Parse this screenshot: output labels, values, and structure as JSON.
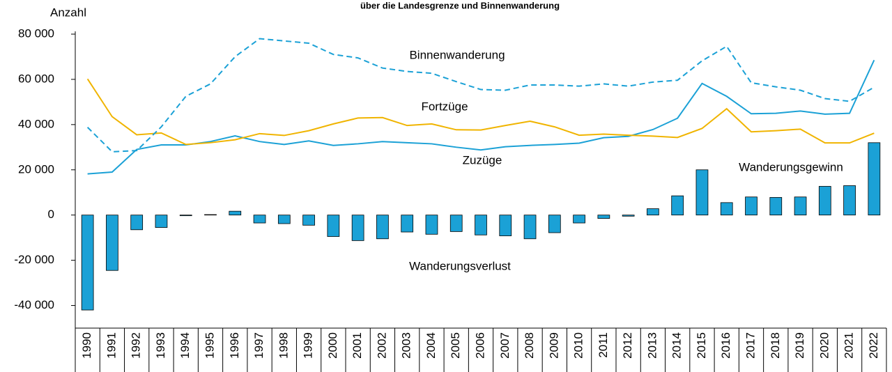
{
  "chart_data": {
    "type": "bar",
    "title": "über die Landesgrenze und Binnenwanderung",
    "y_label": "Anzahl",
    "annotations": [
      "Wanderungsgewinn",
      "Wanderungsverlust"
    ],
    "categories": [
      "1990",
      "1991",
      "1992",
      "1993",
      "1994",
      "1995",
      "1996",
      "1997",
      "1998",
      "1999",
      "2000",
      "2001",
      "2002",
      "2003",
      "2004",
      "2005",
      "2006",
      "2007",
      "2008",
      "2009",
      "2010",
      "2011",
      "2012",
      "2013",
      "2014",
      "2015",
      "2016",
      "2017",
      "2018",
      "2019",
      "2020",
      "2021",
      "2022"
    ],
    "ylim": [
      -50000,
      80000
    ],
    "yticks": [
      {
        "value": -40000,
        "label": "-40 000"
      },
      {
        "value": -20000,
        "label": "-20 000"
      },
      0,
      {
        "value": 20000,
        "label": "20 000"
      },
      {
        "value": 40000,
        "label": "40 000"
      },
      {
        "value": 60000,
        "label": "60 000"
      },
      {
        "value": 80000,
        "label": "80 000"
      }
    ],
    "series": [
      {
        "type": "bar",
        "color": "#1ba1d6",
        "values": [
          -42000,
          -24500,
          -6500,
          -5500,
          -300,
          200,
          1700,
          -3500,
          -3800,
          -4500,
          -9500,
          -11300,
          -10500,
          -7500,
          -8500,
          -7300,
          -8800,
          -9200,
          -10500,
          -7800,
          -3500,
          -1500,
          -500,
          2800,
          8500,
          20000,
          5500,
          8000,
          7800,
          8000,
          12700,
          13000,
          32000
        ]
      },
      {
        "type": "line",
        "name": "Zuzüge",
        "color": "#1ba1d6",
        "values": [
          18200,
          19000,
          29000,
          31000,
          31000,
          32500,
          35000,
          32500,
          31200,
          32800,
          30800,
          31500,
          32500,
          32000,
          31500,
          30000,
          28800,
          30200,
          30800,
          31200,
          31800,
          34200,
          34800,
          37800,
          42800,
          58200,
          52500,
          44800,
          45000,
          46000,
          44600,
          45000,
          68500
        ]
      },
      {
        "type": "line",
        "name": "Fortzüge",
        "color": "#f0b400",
        "values": [
          60200,
          43500,
          35500,
          36300,
          31200,
          32000,
          33300,
          36000,
          35200,
          37300,
          40300,
          42900,
          43100,
          39600,
          40300,
          37700,
          37600,
          39600,
          41500,
          39000,
          35300,
          35800,
          35300,
          34900,
          34300,
          38300,
          47000,
          36800,
          37300,
          38000,
          31900,
          31900,
          36200
        ]
      },
      {
        "type": "line",
        "name": "Binnenwanderung",
        "color": "#1ba1d6",
        "dashed": true,
        "values": [
          38800,
          28000,
          28500,
          39000,
          52500,
          58000,
          70000,
          78000,
          77000,
          76000,
          71000,
          69500,
          65000,
          63500,
          62700,
          59000,
          55500,
          55200,
          57500,
          57500,
          57000,
          58000,
          57000,
          58800,
          59600,
          68200,
          74600,
          58500,
          56700,
          55200,
          51500,
          50300,
          56500
        ]
      }
    ]
  }
}
